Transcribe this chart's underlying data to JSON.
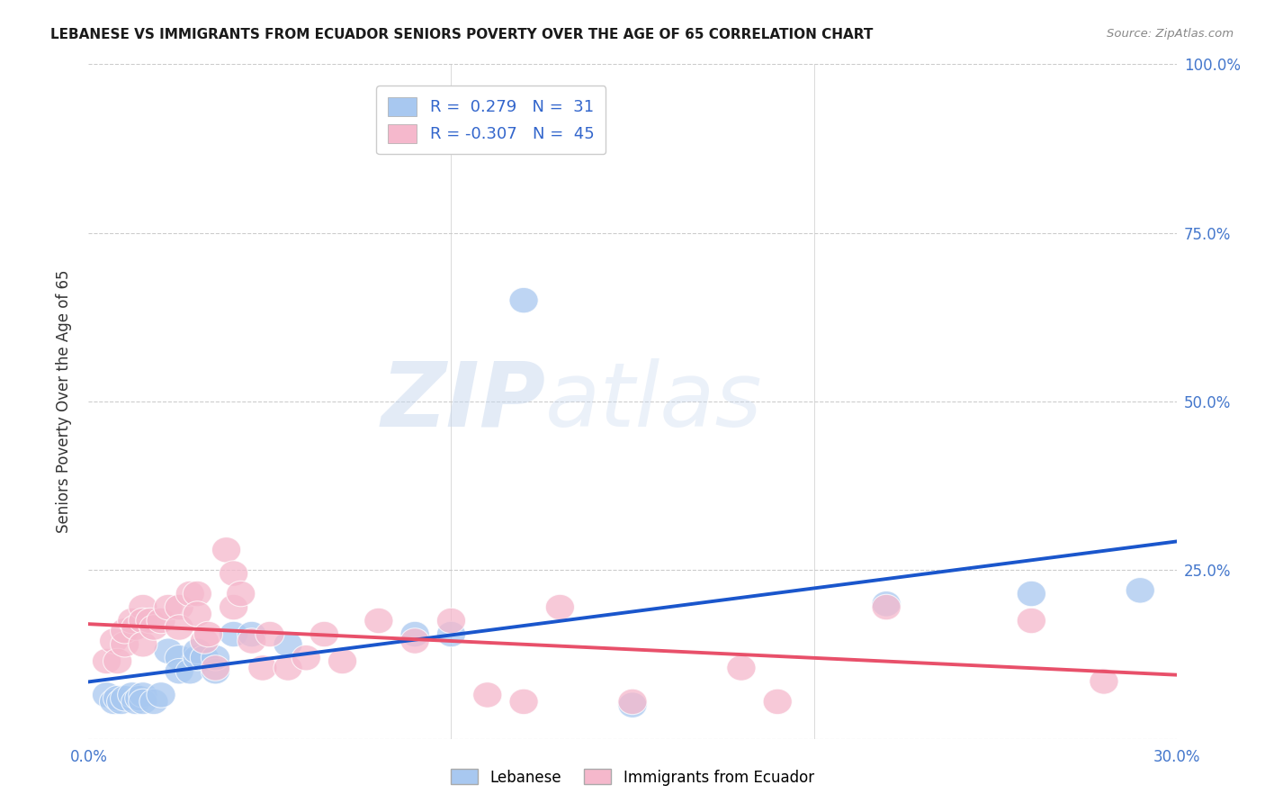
{
  "title": "LEBANESE VS IMMIGRANTS FROM ECUADOR SENIORS POVERTY OVER THE AGE OF 65 CORRELATION CHART",
  "source": "Source: ZipAtlas.com",
  "ylabel": "Seniors Poverty Over the Age of 65",
  "xlim": [
    0.0,
    0.3
  ],
  "ylim": [
    0.0,
    1.0
  ],
  "yticks": [
    0.0,
    0.25,
    0.5,
    0.75,
    1.0
  ],
  "ytick_labels": [
    "",
    "25.0%",
    "50.0%",
    "75.0%",
    "100.0%"
  ],
  "xticks": [
    0.0,
    0.1,
    0.2,
    0.3
  ],
  "xtick_labels": [
    "0.0%",
    "",
    "",
    "30.0%"
  ],
  "background_color": "#ffffff",
  "grid_color": "#cccccc",
  "blue_color": "#A8C8F0",
  "pink_color": "#F5B8CC",
  "blue_line_color": "#1A56CC",
  "pink_line_color": "#E8506A",
  "blue_R": 0.279,
  "blue_N": 31,
  "pink_R": -0.307,
  "pink_N": 45,
  "legend_label_blue": "Lebanese",
  "legend_label_pink": "Immigrants from Ecuador",
  "blue_points_x": [
    0.005,
    0.007,
    0.008,
    0.009,
    0.01,
    0.012,
    0.013,
    0.014,
    0.015,
    0.015,
    0.018,
    0.02,
    0.022,
    0.025,
    0.025,
    0.028,
    0.03,
    0.03,
    0.032,
    0.035,
    0.035,
    0.04,
    0.045,
    0.055,
    0.09,
    0.1,
    0.12,
    0.15,
    0.22,
    0.26,
    0.29
  ],
  "blue_points_y": [
    0.065,
    0.055,
    0.06,
    0.055,
    0.06,
    0.065,
    0.055,
    0.06,
    0.065,
    0.055,
    0.055,
    0.065,
    0.13,
    0.12,
    0.1,
    0.1,
    0.12,
    0.13,
    0.12,
    0.1,
    0.12,
    0.155,
    0.155,
    0.14,
    0.155,
    0.155,
    0.65,
    0.05,
    0.2,
    0.215,
    0.22
  ],
  "pink_points_x": [
    0.005,
    0.007,
    0.008,
    0.01,
    0.01,
    0.012,
    0.013,
    0.015,
    0.015,
    0.015,
    0.017,
    0.018,
    0.02,
    0.022,
    0.025,
    0.025,
    0.028,
    0.03,
    0.03,
    0.032,
    0.033,
    0.035,
    0.038,
    0.04,
    0.04,
    0.042,
    0.045,
    0.048,
    0.05,
    0.055,
    0.06,
    0.065,
    0.07,
    0.08,
    0.09,
    0.1,
    0.11,
    0.12,
    0.13,
    0.15,
    0.18,
    0.19,
    0.22,
    0.26,
    0.28
  ],
  "pink_points_y": [
    0.115,
    0.145,
    0.115,
    0.14,
    0.16,
    0.175,
    0.165,
    0.195,
    0.175,
    0.14,
    0.175,
    0.165,
    0.175,
    0.195,
    0.195,
    0.165,
    0.215,
    0.215,
    0.185,
    0.145,
    0.155,
    0.105,
    0.28,
    0.245,
    0.195,
    0.215,
    0.145,
    0.105,
    0.155,
    0.105,
    0.12,
    0.155,
    0.115,
    0.175,
    0.145,
    0.175,
    0.065,
    0.055,
    0.195,
    0.055,
    0.105,
    0.055,
    0.195,
    0.175,
    0.085
  ]
}
